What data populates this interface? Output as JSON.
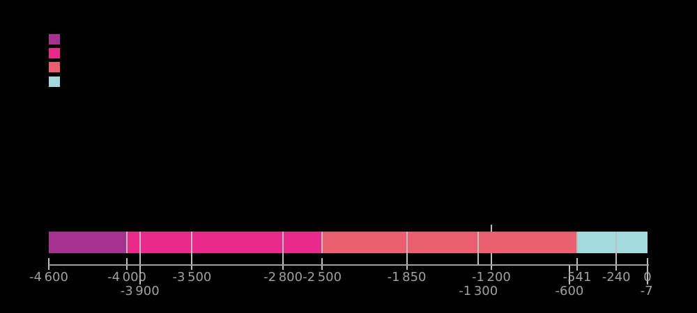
{
  "chart_data": {
    "type": "bar",
    "subtype": "horizontal-stacked-timeline",
    "title": "",
    "xlabel": "",
    "ylabel": "",
    "xlim": [
      -4600,
      0
    ],
    "background_color": "#000000",
    "axis_color": "#9e9e9e",
    "tick_line_color": "#bdbdbd",
    "label_color": "#a0a0a0",
    "grid": false,
    "legend_position": "top-left",
    "legend_swatch_colors": [
      "#a53190",
      "#e92a8d",
      "#e95f6f",
      "#a2d9dc"
    ],
    "segments": [
      {
        "from": -4600,
        "to": -4000,
        "color": "#a53190"
      },
      {
        "from": -4000,
        "to": -2500,
        "color": "#e92a8d"
      },
      {
        "from": -2500,
        "to": -541,
        "color": "#e95f6f"
      },
      {
        "from": -541,
        "to": 0,
        "color": "#a2d9dc"
      }
    ],
    "internal_divider_values": [
      -4000,
      -3900,
      -3500,
      -2800,
      -2500,
      -1850,
      -1300,
      -541,
      -240
    ],
    "event_marker_value": -1200,
    "tick_labels_row1": [
      {
        "text": "-4 600",
        "value": -4600
      },
      {
        "text": "-4 000",
        "value": -4000
      },
      {
        "text": "-3 500",
        "value": -3500
      },
      {
        "text": "-2 800",
        "value": -2800
      },
      {
        "text": "-2 500",
        "value": -2500
      },
      {
        "text": "-1 850",
        "value": -1850
      },
      {
        "text": "-1 200",
        "value": -1200
      },
      {
        "text": "-541",
        "value": -541
      },
      {
        "text": "-240",
        "value": -240
      },
      {
        "text": "0",
        "value": 0
      }
    ],
    "tick_labels_row2": [
      {
        "text": "-3 900",
        "value": -3900
      },
      {
        "text": "-1 300",
        "value": -1300
      },
      {
        "text": "-600",
        "value": -600
      },
      {
        "text": "-7",
        "value": -7
      }
    ]
  }
}
